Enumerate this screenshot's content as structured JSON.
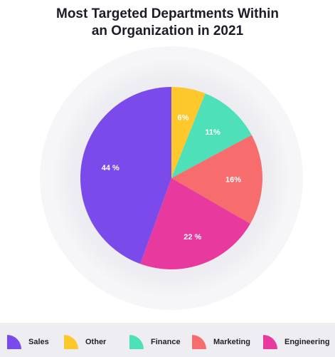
{
  "title_line1": "Most Targeted Departments Within",
  "title_line2": "an Organization in 2021",
  "chart_data": {
    "type": "pie",
    "title": "Most Targeted Departments Within an Organization in 2021",
    "slices": [
      {
        "name": "Other",
        "value": 6,
        "label": "6%",
        "color": "#fcc82c"
      },
      {
        "name": "Finance",
        "value": 11,
        "label": "11%",
        "color": "#4ee0b8"
      },
      {
        "name": "Marketing",
        "value": 16,
        "label": "16%",
        "color": "#f76c6c"
      },
      {
        "name": "Engineering",
        "value": 22,
        "label": "22 %",
        "color": "#e8399e"
      },
      {
        "name": "Sales",
        "value": 44,
        "label": "44 %",
        "color": "#7a4bea"
      }
    ],
    "legend_order": [
      "Sales",
      "Other",
      "Finance",
      "Marketing",
      "Engineering"
    ],
    "legend_position": "bottom"
  }
}
